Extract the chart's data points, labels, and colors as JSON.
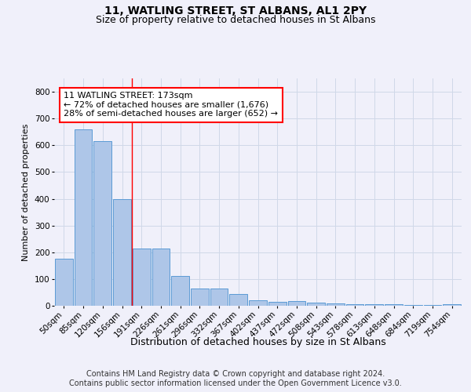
{
  "title": "11, WATLING STREET, ST ALBANS, AL1 2PY",
  "subtitle": "Size of property relative to detached houses in St Albans",
  "xlabel": "Distribution of detached houses by size in St Albans",
  "ylabel": "Number of detached properties",
  "footer_line1": "Contains HM Land Registry data © Crown copyright and database right 2024.",
  "footer_line2": "Contains public sector information licensed under the Open Government Licence v3.0.",
  "bar_labels": [
    "50sqm",
    "85sqm",
    "120sqm",
    "156sqm",
    "191sqm",
    "226sqm",
    "261sqm",
    "296sqm",
    "332sqm",
    "367sqm",
    "402sqm",
    "437sqm",
    "472sqm",
    "508sqm",
    "543sqm",
    "578sqm",
    "613sqm",
    "648sqm",
    "684sqm",
    "719sqm",
    "754sqm"
  ],
  "bar_values": [
    175,
    660,
    615,
    400,
    215,
    215,
    110,
    65,
    65,
    45,
    20,
    15,
    17,
    13,
    10,
    5,
    5,
    5,
    2,
    2,
    5
  ],
  "bar_color": "#aec6e8",
  "bar_edgecolor": "#5b9bd5",
  "grid_color": "#d0d8e8",
  "annotation_line1": "11 WATLING STREET: 173sqm",
  "annotation_line2": "← 72% of detached houses are smaller (1,676)",
  "annotation_line3": "28% of semi-detached houses are larger (652) →",
  "annotation_box_edgecolor": "red",
  "vline_color": "red",
  "vline_x_index": 3.5,
  "ylim": [
    0,
    850
  ],
  "yticks": [
    0,
    100,
    200,
    300,
    400,
    500,
    600,
    700,
    800
  ],
  "background_color": "#f0f0fa",
  "plot_bg_color": "#f0f0fa",
  "title_fontsize": 10,
  "subtitle_fontsize": 9,
  "ylabel_fontsize": 8,
  "xlabel_fontsize": 9,
  "tick_fontsize": 7.5,
  "footer_fontsize": 7,
  "annotation_fontsize": 8
}
